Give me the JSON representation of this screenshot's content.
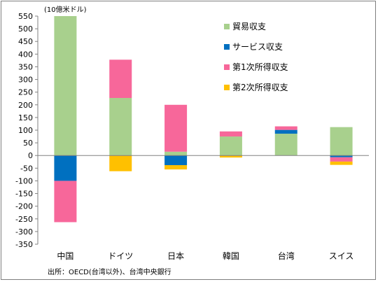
{
  "chart_data": {
    "type": "bar",
    "stacked": true,
    "unit_label": "(10億米ドル)",
    "source": "出所：OECD(台湾以外)、台湾中央銀行",
    "categories": [
      "中国",
      "ドイツ",
      "日本",
      "韓国",
      "台湾",
      "スイス"
    ],
    "ylim": [
      -350,
      550
    ],
    "yticks": [
      550,
      500,
      450,
      400,
      350,
      300,
      250,
      200,
      150,
      100,
      50,
      0,
      -50,
      -100,
      -150,
      -200,
      -250,
      -300,
      -350
    ],
    "legend_position": "top-right",
    "grid": false,
    "series": [
      {
        "name": "貿易収支",
        "color": "#a8d08d",
        "values": [
          550,
          227,
          15,
          75,
          86,
          112
        ]
      },
      {
        "name": "サービス収支",
        "color": "#0070c0",
        "values": [
          -100,
          0,
          -38,
          0,
          15,
          -7
        ]
      },
      {
        "name": "第1次所得収支",
        "color": "#f7679a",
        "values": [
          -163,
          151,
          185,
          20,
          14,
          -17
        ]
      },
      {
        "name": "第2次所得収支",
        "color": "#ffc000",
        "values": [
          0,
          -62,
          -17,
          -8,
          0,
          -13
        ]
      }
    ]
  }
}
